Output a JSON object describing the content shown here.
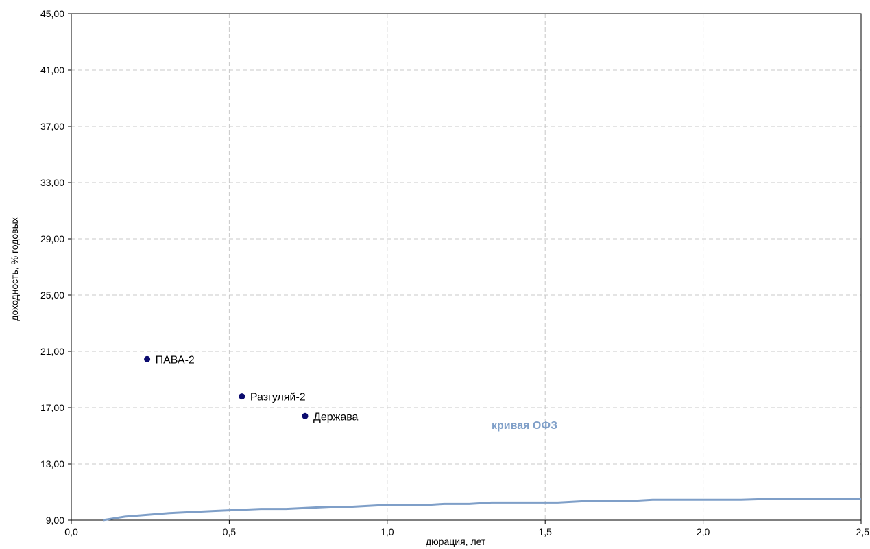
{
  "chart_data": {
    "type": "scatter",
    "title": "",
    "xlabel": "дюрация, лет",
    "ylabel": "доходность, % годовых",
    "xlim": [
      0,
      2.5
    ],
    "ylim": [
      9,
      45
    ],
    "x_ticks": [
      "0,0",
      "0,5",
      "1,0",
      "1,5",
      "2,0",
      "2,5"
    ],
    "x_tick_values": [
      0,
      0.5,
      1.0,
      1.5,
      2.0,
      2.5
    ],
    "y_ticks": [
      "9,00",
      "13,00",
      "17,00",
      "21,00",
      "25,00",
      "29,00",
      "33,00",
      "37,00",
      "41,00",
      "45,00"
    ],
    "y_tick_values": [
      9,
      13,
      17,
      21,
      25,
      29,
      33,
      37,
      41,
      45
    ],
    "grid": true,
    "points": [
      {
        "label": "ПАВА-2",
        "x": 0.24,
        "y": 20.45
      },
      {
        "label": "Разгуляй-2",
        "x": 0.54,
        "y": 17.8
      },
      {
        "label": "Держава",
        "x": 0.74,
        "y": 16.4
      }
    ],
    "point_color": "#0b0b6e",
    "curve": {
      "name": "кривая ОФЗ",
      "color": "#7f9fc8",
      "x": [
        0.1,
        0.17,
        0.31,
        0.45,
        0.6,
        0.68,
        0.82,
        0.89,
        0.97,
        1.1,
        1.18,
        1.26,
        1.33,
        1.47,
        1.54,
        1.62,
        1.76,
        1.84,
        2.12,
        2.19,
        2.5
      ],
      "y": [
        9.0,
        9.25,
        9.5,
        9.65,
        9.8,
        9.8,
        9.95,
        9.95,
        10.05,
        10.05,
        10.15,
        10.15,
        10.25,
        10.25,
        10.25,
        10.35,
        10.35,
        10.45,
        10.45,
        10.5,
        10.5
      ]
    }
  }
}
